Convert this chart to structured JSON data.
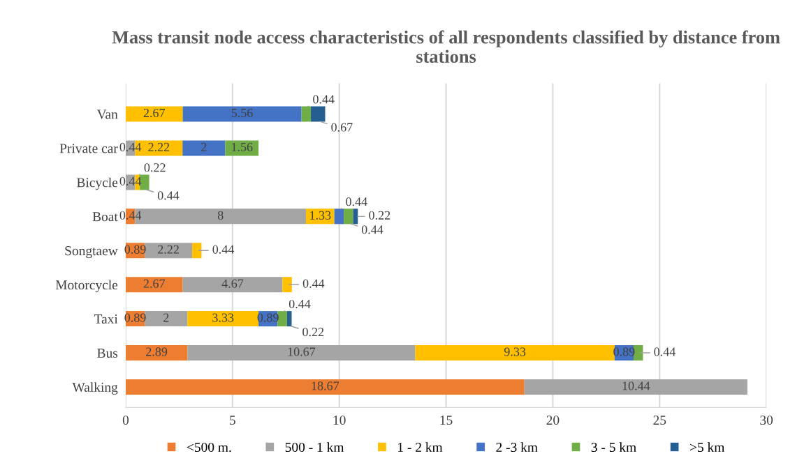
{
  "chart_data": {
    "type": "bar",
    "orientation": "horizontal",
    "stacked": true,
    "data_labels": true,
    "title": "Mass transit node access characteristics of all respondents classified by distance from stations",
    "categories": [
      "Van",
      "Private car",
      "Bicycle",
      "Boat",
      "Songtaew",
      "Motorcycle",
      "Taxi",
      "Bus",
      "Walking"
    ],
    "series": [
      {
        "name": "<500 m.",
        "color": "#ed7d31",
        "values": [
          null,
          null,
          null,
          0.44,
          0.89,
          2.67,
          0.89,
          2.89,
          18.67
        ]
      },
      {
        "name": "500 - 1 km",
        "color": "#a5a5a5",
        "values": [
          null,
          0.44,
          0.44,
          8,
          2.22,
          4.67,
          2,
          10.67,
          10.44
        ]
      },
      {
        "name": "1 - 2 km",
        "color": "#ffc000",
        "values": [
          2.67,
          2.22,
          0.22,
          1.33,
          0.44,
          0.44,
          3.33,
          9.33,
          null
        ]
      },
      {
        "name": "2 -3 km",
        "color": "#4472c4",
        "values": [
          5.56,
          2,
          null,
          0.44,
          null,
          null,
          0.89,
          0.89,
          null
        ]
      },
      {
        "name": "3 - 5 km",
        "color": "#70ad47",
        "values": [
          0.44,
          1.56,
          0.44,
          0.44,
          null,
          null,
          0.44,
          0.44,
          null
        ]
      },
      {
        "name": ">5 km",
        "color": "#255e91",
        "values": [
          0.67,
          null,
          null,
          0.22,
          null,
          null,
          0.22,
          null,
          null
        ]
      }
    ],
    "xlim": [
      0,
      30
    ],
    "xticks": [
      0,
      5,
      10,
      15,
      20,
      25,
      30
    ],
    "grid": "x",
    "legend": "bottom"
  }
}
